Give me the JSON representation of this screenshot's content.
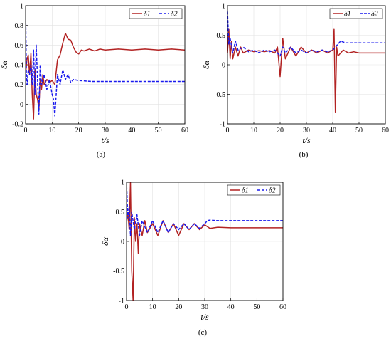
{
  "chart_data": [
    {
      "type": "line",
      "panel_label": "(a)",
      "xlabel": "t/s",
      "ylabel": "δα",
      "xlim": [
        0,
        60
      ],
      "ylim": [
        -0.2,
        1
      ],
      "xticks": [
        "0",
        "10",
        "20",
        "30",
        "40",
        "50",
        "60"
      ],
      "yticks": [
        "-0.2",
        "0",
        "0.2",
        "0.4",
        "0.6",
        "0.8",
        "1"
      ],
      "grid": true,
      "legend": "top-right",
      "series": [
        {
          "name": "δ1",
          "color": "#b22222",
          "dash": "solid",
          "x": [
            0,
            0.5,
            1,
            1.5,
            2,
            2.5,
            3,
            3.5,
            4,
            4.5,
            5,
            5.5,
            6,
            6.5,
            7,
            8,
            9,
            10,
            11,
            12,
            13,
            14,
            15,
            16,
            17,
            18,
            19,
            20,
            21,
            22,
            24,
            26,
            28,
            30,
            35,
            40,
            45,
            50,
            55,
            60
          ],
          "y": [
            0.3,
            0.45,
            0.5,
            0.3,
            0.52,
            0.1,
            -0.15,
            0.35,
            0.1,
            0.05,
            -0.05,
            0.25,
            0.15,
            0.3,
            0.2,
            0.25,
            0.22,
            0.24,
            0.2,
            0.45,
            0.5,
            0.62,
            0.72,
            0.66,
            0.65,
            0.58,
            0.53,
            0.51,
            0.55,
            0.54,
            0.56,
            0.54,
            0.56,
            0.55,
            0.56,
            0.55,
            0.56,
            0.55,
            0.56,
            0.55
          ]
        },
        {
          "name": "δ2",
          "color": "#1a1aee",
          "dash": "dashed",
          "x": [
            0,
            0.3,
            0.6,
            1,
            1.5,
            2,
            2.5,
            3,
            3.5,
            4,
            4.5,
            5,
            5.5,
            6,
            7,
            8,
            9,
            10,
            10.5,
            11,
            12,
            13,
            14,
            15,
            16,
            17,
            18,
            20,
            25,
            30,
            35,
            40,
            45,
            50,
            55,
            60
          ],
          "y": [
            1.0,
            0.3,
            0.2,
            0.35,
            0.3,
            0.4,
            0.2,
            0.55,
            0.1,
            0.6,
            0.25,
            -0.1,
            0.4,
            0.2,
            0.3,
            0.15,
            0.25,
            0.1,
            0.05,
            -0.12,
            0.3,
            0.2,
            0.35,
            0.25,
            0.3,
            0.22,
            0.25,
            0.24,
            0.23,
            0.23,
            0.23,
            0.23,
            0.23,
            0.23,
            0.23,
            0.23
          ]
        }
      ]
    },
    {
      "type": "line",
      "panel_label": "(b)",
      "xlabel": "t/s",
      "ylabel": "δα",
      "xlim": [
        0,
        60
      ],
      "ylim": [
        -1,
        1
      ],
      "xticks": [
        "0",
        "10",
        "20",
        "30",
        "40",
        "50",
        "60"
      ],
      "yticks": [
        "-1",
        "-0.5",
        "0",
        "0.5",
        "1"
      ],
      "grid": true,
      "legend": "top-right",
      "series": [
        {
          "name": "δ1",
          "color": "#b22222",
          "dash": "solid",
          "x": [
            0,
            0.5,
            1,
            1.5,
            2,
            3,
            4,
            5,
            6,
            8,
            10,
            12,
            14,
            16,
            18,
            19,
            20,
            21,
            22,
            24,
            26,
            28,
            30,
            32,
            34,
            36,
            38,
            40,
            40.5,
            41,
            41.5,
            42,
            44,
            46,
            48,
            50,
            55,
            60
          ],
          "y": [
            0.2,
            0.6,
            0.1,
            0.4,
            0.1,
            0.3,
            0.15,
            0.3,
            0.2,
            0.25,
            0.22,
            0.24,
            0.22,
            0.24,
            0.2,
            0.3,
            -0.2,
            0.45,
            0.1,
            0.3,
            0.15,
            0.3,
            0.2,
            0.25,
            0.2,
            0.25,
            0.2,
            0.25,
            0.6,
            -0.8,
            0.3,
            0.15,
            0.25,
            0.2,
            0.22,
            0.2,
            0.2,
            0.2
          ]
        },
        {
          "name": "δ2",
          "color": "#1a1aee",
          "dash": "dashed",
          "x": [
            0,
            0.5,
            1,
            2,
            3,
            4,
            6,
            8,
            10,
            12,
            14,
            16,
            18,
            20,
            21,
            22,
            24,
            26,
            28,
            30,
            32,
            34,
            36,
            38,
            40,
            41,
            42,
            43,
            45,
            50,
            55,
            60
          ],
          "y": [
            0.9,
            0.35,
            0.45,
            0.2,
            0.4,
            0.25,
            0.3,
            0.22,
            0.25,
            0.2,
            0.25,
            0.22,
            0.25,
            0.15,
            0.3,
            0.2,
            0.3,
            0.2,
            0.25,
            0.2,
            0.25,
            0.22,
            0.25,
            0.22,
            0.25,
            0.3,
            0.35,
            0.4,
            0.37,
            0.37,
            0.37,
            0.37
          ]
        }
      ]
    },
    {
      "type": "line",
      "panel_label": "(c)",
      "xlabel": "t/s",
      "ylabel": "δα",
      "xlim": [
        0,
        60
      ],
      "ylim": [
        -1,
        1
      ],
      "xticks": [
        "0",
        "10",
        "20",
        "30",
        "40",
        "50",
        "60"
      ],
      "yticks": [
        "-1",
        "-0.5",
        "0",
        "0.5",
        "1"
      ],
      "grid": true,
      "legend": "top-right",
      "series": [
        {
          "name": "δ1",
          "color": "#b22222",
          "dash": "solid",
          "x": [
            0,
            0.5,
            1,
            1.5,
            2,
            2.5,
            3,
            3.5,
            4,
            4.5,
            5,
            6,
            7,
            8,
            10,
            12,
            14,
            16,
            18,
            20,
            22,
            24,
            26,
            28,
            30,
            32,
            35,
            40,
            45,
            50,
            55,
            60
          ],
          "y": [
            0.3,
            0.5,
            0.2,
            1.0,
            -0.5,
            -1.0,
            0.4,
            0.0,
            0.3,
            -0.2,
            0.3,
            0.1,
            0.35,
            0.15,
            0.3,
            0.1,
            0.35,
            0.15,
            0.3,
            0.1,
            0.3,
            0.2,
            0.3,
            0.2,
            0.28,
            0.22,
            0.24,
            0.23,
            0.23,
            0.23,
            0.23,
            0.23
          ]
        },
        {
          "name": "δ2",
          "color": "#1a1aee",
          "dash": "dashed",
          "x": [
            0,
            0.5,
            1,
            1.5,
            2,
            3,
            4,
            5,
            6,
            8,
            10,
            12,
            14,
            16,
            18,
            20,
            22,
            24,
            26,
            28,
            30,
            31,
            32,
            35,
            40,
            45,
            50,
            55,
            60
          ],
          "y": [
            1.0,
            0.4,
            0.6,
            0.1,
            0.5,
            0.2,
            0.45,
            0.1,
            0.35,
            0.15,
            0.35,
            0.15,
            0.35,
            0.15,
            0.3,
            0.2,
            0.3,
            0.2,
            0.3,
            0.22,
            0.3,
            0.35,
            0.36,
            0.35,
            0.35,
            0.35,
            0.35,
            0.35,
            0.35
          ]
        }
      ]
    }
  ]
}
